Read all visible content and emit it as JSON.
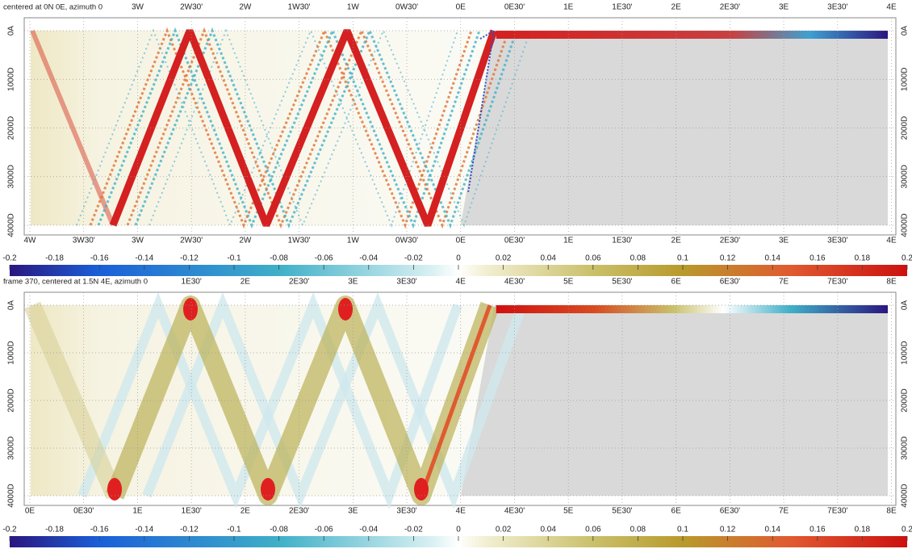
{
  "panels": [
    {
      "title": "centered at 0N 0E, azimuth 0",
      "top_labels": [
        "3W",
        "2W30'",
        "2W",
        "1W30'",
        "1W",
        "0W30'",
        "0E",
        "0E30'",
        "1E",
        "1E30'",
        "2E",
        "2E30'",
        "3E",
        "3E30'",
        "4E"
      ],
      "bottom_labels": [
        "4W",
        "3W30'",
        "3W",
        "2W30'",
        "2W",
        "1W30'",
        "1W",
        "0W30'",
        "0E",
        "0E30'",
        "1E",
        "1E30'",
        "2E",
        "2E30'",
        "3E",
        "3E30'",
        "4E"
      ],
      "depth_labels": [
        "0A",
        "1000D",
        "2000D",
        "3000D",
        "4000D"
      ],
      "colorbar_lim": [
        -0.2,
        0.2
      ],
      "colorbar_ticks": [
        -0.2,
        -0.18,
        -0.16,
        -0.14,
        -0.12,
        -0.1,
        -0.08,
        -0.06,
        -0.04,
        -0.02,
        0,
        0.02,
        0.04,
        0.06,
        0.08,
        0.1,
        0.12,
        0.14,
        0.16,
        0.18,
        0.2
      ]
    },
    {
      "title": "frame 370, centered at 1.5N 4E, azimuth 0",
      "top_labels": [
        "1E30'",
        "2E",
        "2E30'",
        "3E",
        "3E30'",
        "4E",
        "4E30'",
        "5E",
        "5E30'",
        "6E",
        "6E30'",
        "7E",
        "7E30'",
        "8E"
      ],
      "bottom_labels": [
        "0E",
        "0E30'",
        "1E",
        "1E30'",
        "2E",
        "2E30'",
        "3E",
        "3E30'",
        "4E",
        "4E30'",
        "5E",
        "5E30'",
        "6E",
        "6E30'",
        "7E",
        "7E30'",
        "8E"
      ],
      "depth_labels": [
        "0A",
        "1000D",
        "2000D",
        "3000D",
        "4000D"
      ],
      "colorbar_lim": [
        -0.2,
        0.2
      ],
      "colorbar_ticks": [
        -0.2,
        -0.18,
        -0.16,
        -0.14,
        -0.12,
        -0.1,
        -0.08,
        -0.06,
        -0.04,
        -0.02,
        0,
        0.02,
        0.04,
        0.06,
        0.08,
        0.1,
        0.12,
        0.14,
        0.16,
        0.18,
        0.2
      ]
    }
  ]
}
